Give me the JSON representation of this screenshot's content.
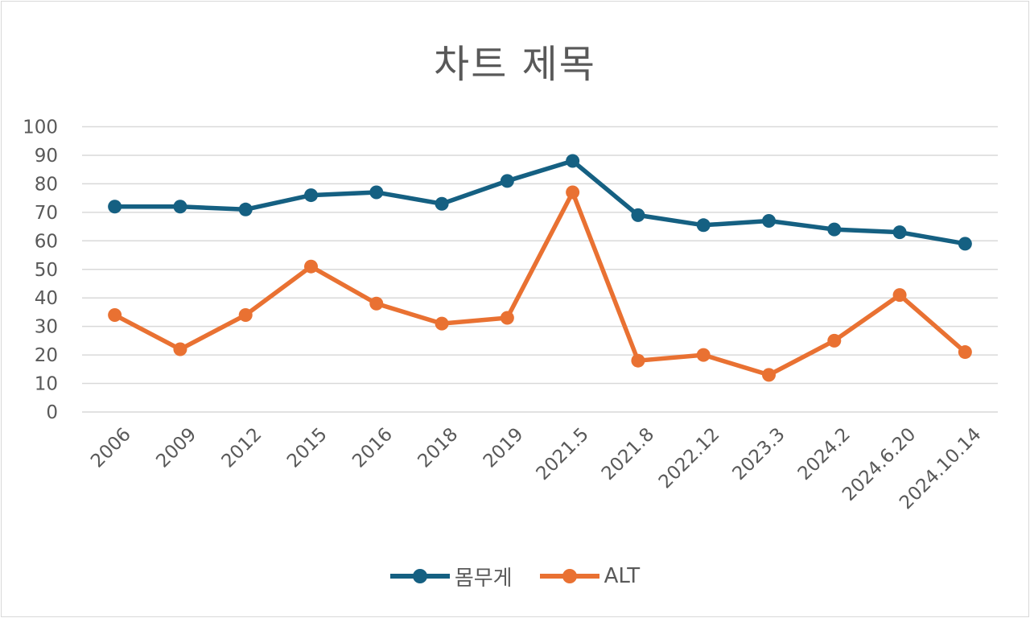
{
  "chart_data": {
    "type": "line",
    "title": "차트 제목",
    "xlabel": "",
    "ylabel": "",
    "categories": [
      "2006",
      "2009",
      "2012",
      "2015",
      "2016",
      "2018",
      "2019",
      "2021.5",
      "2021.8",
      "2022.12",
      "2023.3",
      "2024.2",
      "2024.6.20",
      "2024.10.14"
    ],
    "ylim": [
      0,
      100
    ],
    "yticks": [
      0,
      10,
      20,
      30,
      40,
      50,
      60,
      70,
      80,
      90,
      100
    ],
    "grid": true,
    "legend_position": "bottom",
    "series": [
      {
        "name": "몸무게",
        "color": "#156082",
        "values": [
          72,
          72,
          71,
          76,
          77,
          73,
          81,
          88,
          69,
          65.5,
          67,
          64,
          63,
          59
        ]
      },
      {
        "name": "ALT",
        "color": "#E97132",
        "values": [
          34,
          22,
          34,
          51,
          38,
          31,
          33,
          77,
          18,
          20,
          13,
          25,
          41,
          21
        ]
      }
    ]
  }
}
